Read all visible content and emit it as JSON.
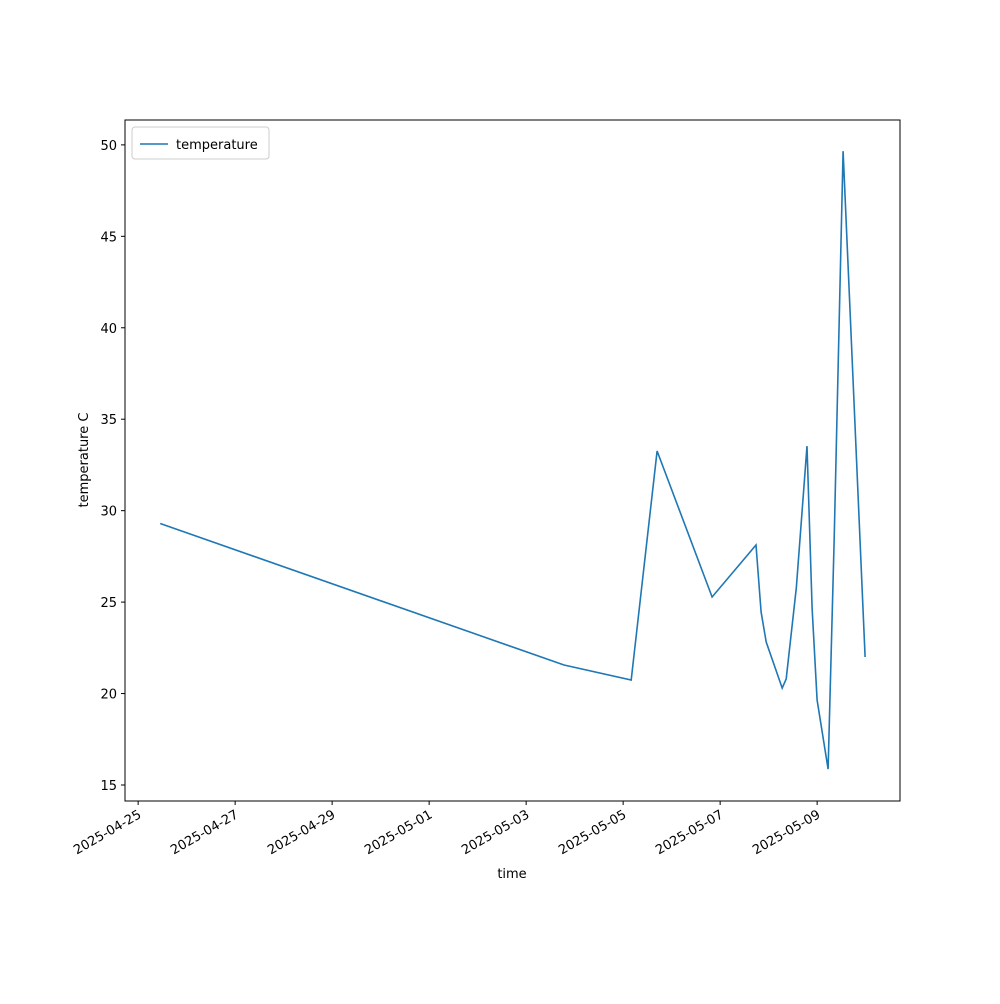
{
  "chart_data": {
    "type": "line",
    "xlabel": "time",
    "ylabel": "temperature C",
    "x": [
      "2025-04-25T10:54",
      "2025-05-03T18:44",
      "2025-05-05T03:58",
      "2025-05-05T16:48",
      "2025-05-06T20:02",
      "2025-05-07T17:46",
      "2025-05-07T20:17",
      "2025-05-07T22:48",
      "2025-05-08T06:43",
      "2025-05-08T08:41",
      "2025-05-08T13:40",
      "2025-05-08T19:00",
      "2025-05-08T21:30",
      "2025-05-09T00:00",
      "2025-05-09T05:26",
      "2025-05-09T08:25",
      "2025-05-09T12:52",
      "2025-05-09T23:45"
    ],
    "series": [
      {
        "name": "temperature",
        "color": "#1f77b4",
        "values": [
          29.3,
          21.56,
          20.74,
          33.26,
          25.28,
          28.12,
          24.46,
          22.82,
          20.3,
          20.8,
          25.77,
          33.53,
          24.68,
          19.65,
          15.87,
          28.5,
          49.66,
          22.0
        ]
      }
    ],
    "xlim": [
      "2025-04-24T17:30",
      "2025-05-10T17:00"
    ],
    "xticks": [
      "2025-04-25",
      "2025-04-27",
      "2025-04-29",
      "2025-05-01",
      "2025-05-03",
      "2025-05-05",
      "2025-05-07",
      "2025-05-09"
    ],
    "ylim": [
      14.125,
      51.36
    ],
    "yticks": [
      15,
      20,
      25,
      30,
      35,
      40,
      45,
      50
    ],
    "legend": "upper left"
  }
}
